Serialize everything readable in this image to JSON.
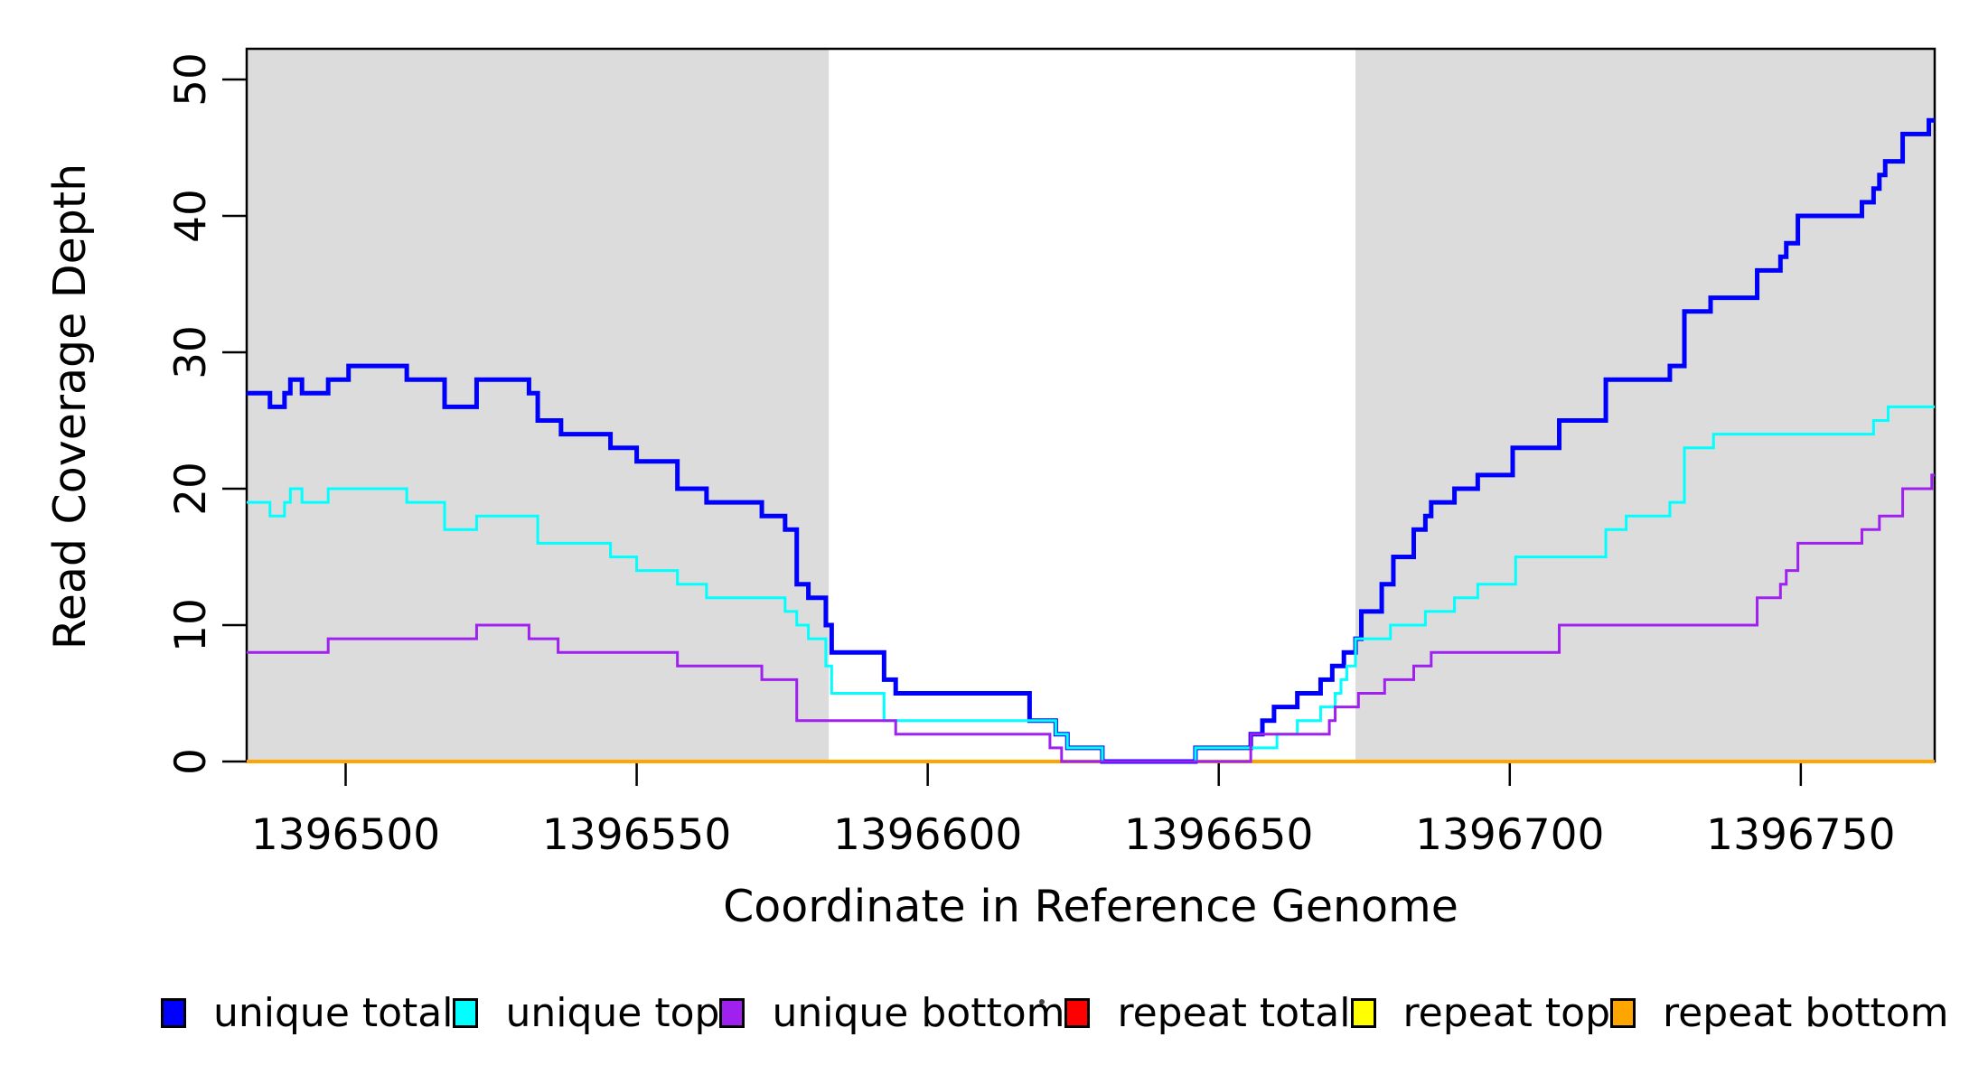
{
  "chart_data": {
    "type": "line",
    "subtype": "step-after-coverage-plot",
    "title": "",
    "xlabel": "Coordinate in Reference Genome",
    "ylabel": "Read Coverage Depth",
    "xlim": [
      1396483,
      1396773
    ],
    "ylim": [
      0,
      52
    ],
    "grid": false,
    "background": "#FFFFFF",
    "frame_color": "#000000",
    "x_ticks": [
      {
        "value": 1396500,
        "label": "1396500"
      },
      {
        "value": 1396550,
        "label": "1396550"
      },
      {
        "value": 1396600,
        "label": "1396600"
      },
      {
        "value": 1396650,
        "label": "1396650"
      },
      {
        "value": 1396700,
        "label": "1396700"
      },
      {
        "value": 1396750,
        "label": "1396750"
      }
    ],
    "y_ticks": [
      {
        "value": 0,
        "label": "0"
      },
      {
        "value": 10,
        "label": "10"
      },
      {
        "value": 20,
        "label": "20"
      },
      {
        "value": 30,
        "label": "30"
      },
      {
        "value": 40,
        "label": "40"
      },
      {
        "value": 50,
        "label": "50"
      }
    ],
    "shaded_regions": [
      {
        "x_start": 1396483,
        "x_end": 1396583,
        "color": "#DCDCDC"
      },
      {
        "x_start": 1396673.5,
        "x_end": 1396773,
        "color": "#DCDCDC"
      }
    ],
    "legend_position": "bottom",
    "draw_order": [
      "repeat total",
      "repeat top",
      "repeat bottom",
      "unique total",
      "unique top",
      "unique bottom"
    ],
    "series": [
      {
        "name": "unique total",
        "color": "#0000FF",
        "line_width": 5,
        "points": [
          [
            1396483,
            27
          ],
          [
            1396487,
            26
          ],
          [
            1396489.5,
            27
          ],
          [
            1396490.5,
            28
          ],
          [
            1396492.5,
            27
          ],
          [
            1396497,
            28
          ],
          [
            1396500.5,
            29
          ],
          [
            1396510.5,
            28
          ],
          [
            1396517,
            26
          ],
          [
            1396522.5,
            28
          ],
          [
            1396531.5,
            27
          ],
          [
            1396533,
            25
          ],
          [
            1396537,
            24
          ],
          [
            1396545.5,
            23
          ],
          [
            1396550,
            22
          ],
          [
            1396557,
            20
          ],
          [
            1396562,
            19
          ],
          [
            1396571.5,
            18
          ],
          [
            1396575.5,
            17
          ],
          [
            1396577.5,
            13
          ],
          [
            1396579.5,
            12
          ],
          [
            1396582.5,
            10
          ],
          [
            1396583.5,
            8
          ],
          [
            1396592.5,
            6
          ],
          [
            1396594.5,
            5
          ],
          [
            1396617.5,
            3
          ],
          [
            1396622,
            2
          ],
          [
            1396624,
            1
          ],
          [
            1396630,
            0
          ],
          [
            1396646,
            1
          ],
          [
            1396655.5,
            2
          ],
          [
            1396657.5,
            3
          ],
          [
            1396659.5,
            4
          ],
          [
            1396663.5,
            5
          ],
          [
            1396667.5,
            6
          ],
          [
            1396669.5,
            7
          ],
          [
            1396671.5,
            8
          ],
          [
            1396673.5,
            9
          ],
          [
            1396674.5,
            11
          ],
          [
            1396678,
            13
          ],
          [
            1396680,
            15
          ],
          [
            1396683.5,
            17
          ],
          [
            1396685.5,
            18
          ],
          [
            1396686.5,
            19
          ],
          [
            1396690.5,
            20
          ],
          [
            1396694.5,
            21
          ],
          [
            1396700.5,
            23
          ],
          [
            1396708.5,
            25
          ],
          [
            1396716.5,
            28
          ],
          [
            1396727.5,
            29
          ],
          [
            1396730,
            33
          ],
          [
            1396734.5,
            34
          ],
          [
            1396742.5,
            36
          ],
          [
            1396746.5,
            37
          ],
          [
            1396747.5,
            38
          ],
          [
            1396749.5,
            40
          ],
          [
            1396760.5,
            41
          ],
          [
            1396762.5,
            42
          ],
          [
            1396763.5,
            43
          ],
          [
            1396764.5,
            44
          ],
          [
            1396767.5,
            46
          ],
          [
            1396772,
            47
          ]
        ]
      },
      {
        "name": "unique top",
        "color": "#00FFFF",
        "line_width": 3,
        "points": [
          [
            1396483,
            19
          ],
          [
            1396487,
            18
          ],
          [
            1396489.5,
            19
          ],
          [
            1396490.5,
            20
          ],
          [
            1396492.5,
            19
          ],
          [
            1396497,
            20
          ],
          [
            1396510.5,
            19
          ],
          [
            1396517,
            17
          ],
          [
            1396522.5,
            18
          ],
          [
            1396533,
            16
          ],
          [
            1396545.5,
            15
          ],
          [
            1396550,
            14
          ],
          [
            1396557,
            13
          ],
          [
            1396562,
            12
          ],
          [
            1396575.5,
            11
          ],
          [
            1396577.5,
            10
          ],
          [
            1396579.5,
            9
          ],
          [
            1396582.5,
            7
          ],
          [
            1396583.5,
            5
          ],
          [
            1396592.5,
            3
          ],
          [
            1396622,
            2
          ],
          [
            1396624,
            1
          ],
          [
            1396630,
            0
          ],
          [
            1396646,
            1
          ],
          [
            1396660,
            2
          ],
          [
            1396663.5,
            3
          ],
          [
            1396667.5,
            4
          ],
          [
            1396670,
            5
          ],
          [
            1396671,
            6
          ],
          [
            1396672,
            7
          ],
          [
            1396673.5,
            9
          ],
          [
            1396679.5,
            10
          ],
          [
            1396685.5,
            11
          ],
          [
            1396690.5,
            12
          ],
          [
            1396694.5,
            13
          ],
          [
            1396701,
            15
          ],
          [
            1396716.5,
            17
          ],
          [
            1396720,
            18
          ],
          [
            1396727.5,
            19
          ],
          [
            1396730,
            23
          ],
          [
            1396735,
            24
          ],
          [
            1396762.5,
            25
          ],
          [
            1396765,
            26
          ]
        ]
      },
      {
        "name": "unique bottom",
        "color": "#A020F0",
        "line_width": 3,
        "points": [
          [
            1396483,
            8
          ],
          [
            1396497,
            9
          ],
          [
            1396522.5,
            10
          ],
          [
            1396531.5,
            9
          ],
          [
            1396536.5,
            8
          ],
          [
            1396557,
            7
          ],
          [
            1396571.5,
            6
          ],
          [
            1396577.5,
            3
          ],
          [
            1396594.5,
            2
          ],
          [
            1396621,
            1
          ],
          [
            1396623,
            0
          ],
          [
            1396655.5,
            2
          ],
          [
            1396669,
            3
          ],
          [
            1396670,
            4
          ],
          [
            1396674,
            5
          ],
          [
            1396678.5,
            6
          ],
          [
            1396683.5,
            7
          ],
          [
            1396686.5,
            8
          ],
          [
            1396708.5,
            10
          ],
          [
            1396742.5,
            12
          ],
          [
            1396746.5,
            13
          ],
          [
            1396747.5,
            14
          ],
          [
            1396749.5,
            16
          ],
          [
            1396760.5,
            17
          ],
          [
            1396763.5,
            18
          ],
          [
            1396767.5,
            20
          ],
          [
            1396772.5,
            21
          ]
        ]
      },
      {
        "name": "repeat total",
        "color": "#FF0000",
        "line_width": 3,
        "points": [
          [
            1396483,
            0
          ]
        ]
      },
      {
        "name": "repeat top",
        "color": "#FFFF00",
        "line_width": 3,
        "points": [
          [
            1396483,
            0
          ]
        ]
      },
      {
        "name": "repeat bottom",
        "color": "#FFA500",
        "line_width": 4,
        "points": [
          [
            1396483,
            0
          ]
        ]
      }
    ]
  },
  "legend": {
    "items": [
      {
        "label": "unique total",
        "color": "#0000FF"
      },
      {
        "label": "unique top",
        "color": "#00FFFF"
      },
      {
        "label": "unique bottom",
        "color": "#A020F0"
      },
      {
        "label": "repeat total",
        "color": "#FF0000"
      },
      {
        "label": "repeat top",
        "color": "#FFFF00"
      },
      {
        "label": "repeat bottom",
        "color": "#FFA500"
      }
    ]
  }
}
